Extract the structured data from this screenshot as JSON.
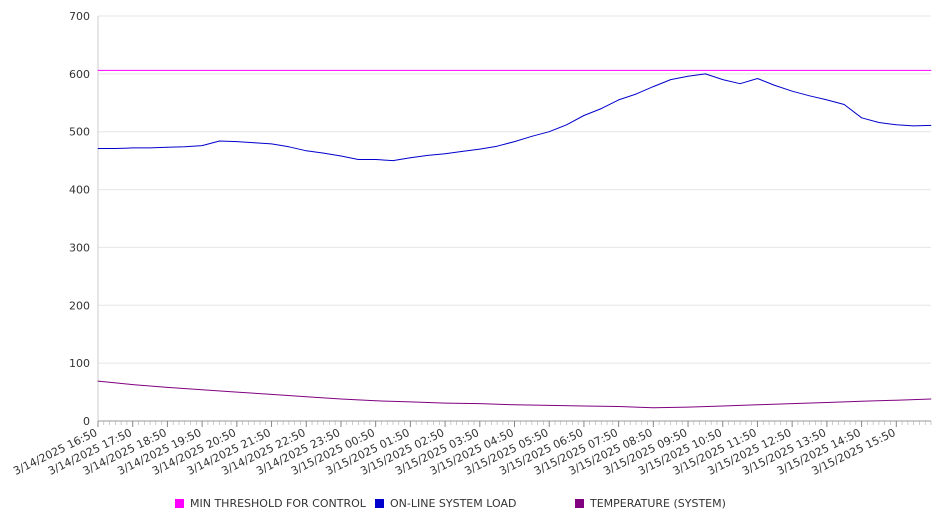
{
  "chart_data": {
    "type": "line",
    "title": "",
    "xlabel": "",
    "ylabel": "",
    "ylim": [
      0,
      700
    ],
    "y_ticks": [
      "0",
      "100",
      "200",
      "300",
      "400",
      "500",
      "600",
      "700"
    ],
    "x_tick_labels": [
      "3/14/2025 16:50",
      "3/14/2025 17:50",
      "3/14/2025 18:50",
      "3/14/2025 19:50",
      "3/14/2025 20:50",
      "3/14/2025 21:50",
      "3/14/2025 22:50",
      "3/14/2025 23:50",
      "3/15/2025 00:50",
      "3/15/2025 01:50",
      "3/15/2025 02:50",
      "3/15/2025 03:50",
      "3/15/2025 04:50",
      "3/15/2025 05:50",
      "3/15/2025 06:50",
      "3/15/2025 07:50",
      "3/15/2025 08:50",
      "3/15/2025 09:50",
      "3/15/2025 10:50",
      "3/15/2025 11:50",
      "3/15/2025 12:50",
      "3/15/2025 13:50",
      "3/15/2025 14:50",
      "3/15/2025 15:50"
    ],
    "x_range": [
      "3/14/2025 16:50",
      "3/15/2025 16:50"
    ],
    "grid": true,
    "legend_position": "bottom",
    "series": [
      {
        "name": "MIN THRESHOLD FOR CONTROL",
        "color": "#ff00ff",
        "x": [
          "3/14/2025 16:50",
          "3/15/2025 16:50"
        ],
        "y": [
          606,
          606
        ]
      },
      {
        "name": "ON-LINE SYSTEM LOAD",
        "color": "#0000cc",
        "x": [
          "3/14/2025 16:50",
          "3/14/2025 17:20",
          "3/14/2025 17:50",
          "3/14/2025 18:20",
          "3/14/2025 18:50",
          "3/14/2025 19:20",
          "3/14/2025 19:50",
          "3/14/2025 20:20",
          "3/14/2025 20:50",
          "3/14/2025 21:20",
          "3/14/2025 21:50",
          "3/14/2025 22:20",
          "3/14/2025 22:50",
          "3/14/2025 23:20",
          "3/14/2025 23:50",
          "3/15/2025 00:20",
          "3/15/2025 00:50",
          "3/15/2025 01:20",
          "3/15/2025 01:50",
          "3/15/2025 02:20",
          "3/15/2025 02:50",
          "3/15/2025 03:20",
          "3/15/2025 03:50",
          "3/15/2025 04:20",
          "3/15/2025 04:50",
          "3/15/2025 05:20",
          "3/15/2025 05:50",
          "3/15/2025 06:20",
          "3/15/2025 06:50",
          "3/15/2025 07:20",
          "3/15/2025 07:50",
          "3/15/2025 08:20",
          "3/15/2025 08:50",
          "3/15/2025 09:20",
          "3/15/2025 09:50",
          "3/15/2025 10:20",
          "3/15/2025 10:50",
          "3/15/2025 11:20",
          "3/15/2025 11:50",
          "3/15/2025 12:20",
          "3/15/2025 12:50",
          "3/15/2025 13:20",
          "3/15/2025 13:50",
          "3/15/2025 14:20",
          "3/15/2025 14:50",
          "3/15/2025 15:20",
          "3/15/2025 15:50",
          "3/15/2025 16:20",
          "3/15/2025 16:50"
        ],
        "y": [
          471,
          471,
          472,
          472,
          473,
          474,
          476,
          484,
          483,
          481,
          479,
          474,
          467,
          463,
          458,
          452,
          452,
          450,
          455,
          459,
          462,
          466,
          470,
          475,
          483,
          492,
          500,
          512,
          528,
          540,
          555,
          565,
          578,
          590,
          596,
          600,
          590,
          583,
          592,
          580,
          570,
          562,
          555,
          547,
          524,
          516,
          512,
          510,
          511
        ]
      },
      {
        "name": "TEMPERATURE (SYSTEM)",
        "color": "#800080",
        "x": [
          "3/14/2025 16:50",
          "3/14/2025 17:50",
          "3/14/2025 18:50",
          "3/14/2025 19:50",
          "3/14/2025 20:50",
          "3/14/2025 21:50",
          "3/14/2025 22:50",
          "3/14/2025 23:50",
          "3/15/2025 00:50",
          "3/15/2025 01:50",
          "3/15/2025 02:50",
          "3/15/2025 03:50",
          "3/15/2025 04:50",
          "3/15/2025 05:50",
          "3/15/2025 06:50",
          "3/15/2025 07:50",
          "3/15/2025 08:50",
          "3/15/2025 09:50",
          "3/15/2025 10:50",
          "3/15/2025 11:50",
          "3/15/2025 12:50",
          "3/15/2025 13:50",
          "3/15/2025 14:50",
          "3/15/2025 15:50",
          "3/15/2025 16:50"
        ],
        "y": [
          69,
          63,
          58,
          54,
          50,
          46,
          42,
          38,
          35,
          33,
          31,
          30,
          28,
          27,
          26,
          25,
          23,
          24,
          26,
          28,
          30,
          32,
          34,
          36,
          38
        ]
      }
    ]
  }
}
